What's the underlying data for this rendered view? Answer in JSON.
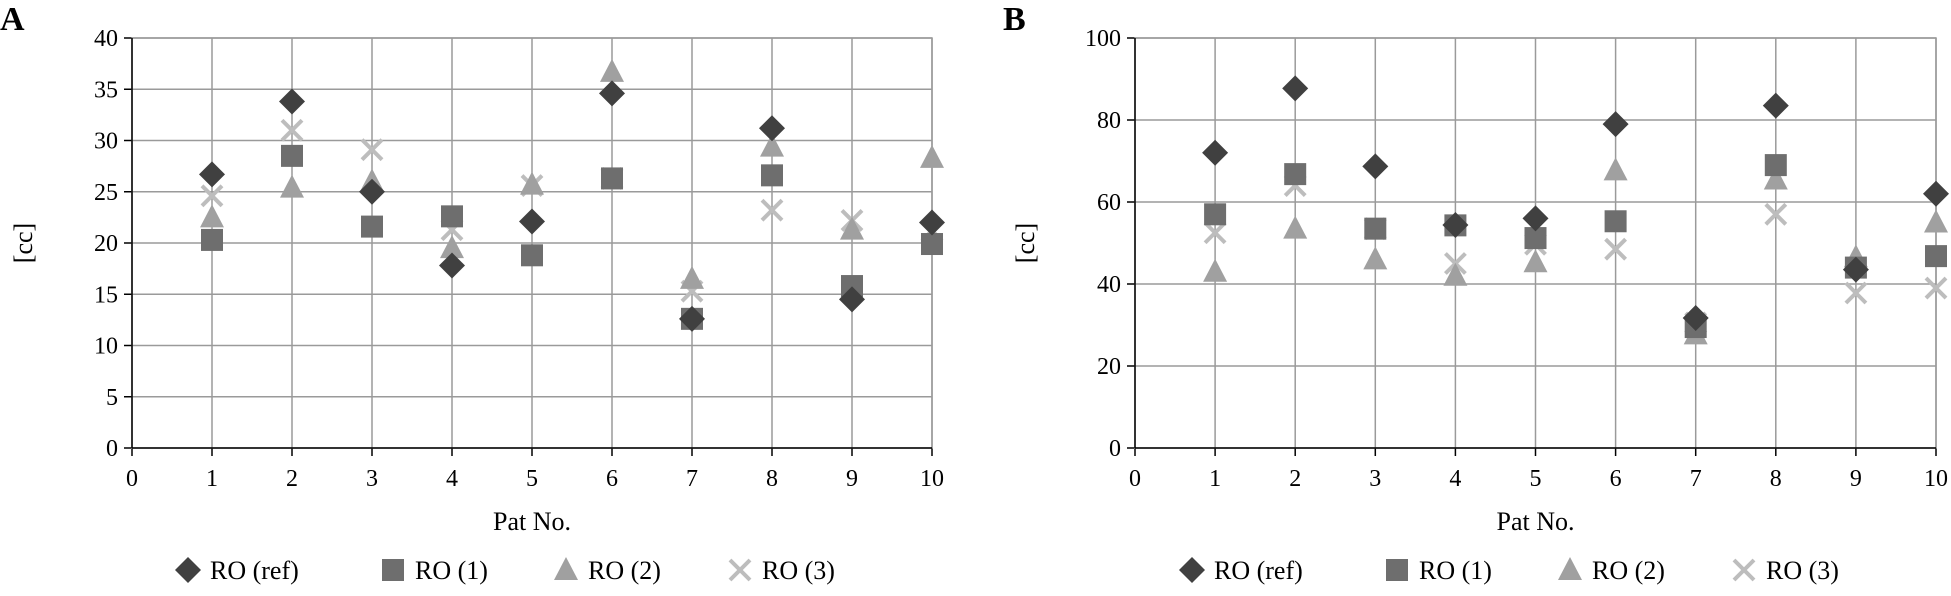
{
  "chart_data": [
    {
      "panel": "A",
      "type": "scatter",
      "xlabel": "Pat No.",
      "ylabel": "[cc]",
      "xlim": [
        0,
        10
      ],
      "ylim": [
        0,
        40
      ],
      "xticks": [
        "0",
        "1",
        "2",
        "3",
        "4",
        "5",
        "6",
        "7",
        "8",
        "9",
        "10"
      ],
      "yticks": [
        "0",
        "5",
        "10",
        "15",
        "20",
        "25",
        "30",
        "35",
        "40"
      ],
      "x": [
        1,
        2,
        3,
        4,
        5,
        6,
        7,
        8,
        9,
        10
      ],
      "grid": true,
      "legend_position": "bottom",
      "series": [
        {
          "name": "RO (ref)",
          "marker": "diamond",
          "color": "#404040",
          "values": [
            26.7,
            33.8,
            25.0,
            17.8,
            22.1,
            34.6,
            12.6,
            31.2,
            14.5,
            22.0
          ]
        },
        {
          "name": "RO (1)",
          "marker": "square",
          "color": "#6e6e6e",
          "values": [
            20.3,
            28.5,
            21.6,
            22.6,
            18.8,
            26.3,
            12.6,
            26.6,
            15.8,
            19.9
          ]
        },
        {
          "name": "RO (2)",
          "marker": "triangle",
          "color": "#a0a0a0",
          "values": [
            22.5,
            25.4,
            26.0,
            19.5,
            25.7,
            36.7,
            16.5,
            29.4,
            21.3,
            28.3
          ]
        },
        {
          "name": "RO (3)",
          "marker": "x",
          "color": "#bdbdbd",
          "values": [
            24.6,
            31.0,
            29.1,
            21.3,
            25.6,
            26.3,
            15.3,
            23.2,
            22.2,
            21.2
          ]
        }
      ]
    },
    {
      "panel": "B",
      "type": "scatter",
      "xlabel": "Pat No.",
      "ylabel": "[cc]",
      "xlim": [
        0,
        10
      ],
      "ylim": [
        0,
        100
      ],
      "xticks": [
        "0",
        "1",
        "2",
        "3",
        "4",
        "5",
        "6",
        "7",
        "8",
        "9",
        "10"
      ],
      "yticks": [
        "0",
        "20",
        "40",
        "60",
        "80",
        "100"
      ],
      "x": [
        1,
        2,
        3,
        4,
        5,
        6,
        7,
        8,
        9,
        10
      ],
      "grid": true,
      "legend_position": "bottom",
      "series": [
        {
          "name": "RO (ref)",
          "marker": "diamond",
          "color": "#404040",
          "values": [
            72.0,
            87.7,
            68.7,
            54.4,
            56.0,
            79.0,
            31.7,
            83.5,
            43.5,
            62.0
          ]
        },
        {
          "name": "RO (1)",
          "marker": "square",
          "color": "#6e6e6e",
          "values": [
            57.0,
            66.8,
            53.5,
            54.3,
            51.2,
            55.3,
            29.5,
            69.0,
            44.0,
            46.8
          ]
        },
        {
          "name": "RO (2)",
          "marker": "triangle",
          "color": "#a0a0a0",
          "values": [
            43.0,
            53.5,
            46.0,
            42.0,
            45.3,
            67.7,
            27.7,
            65.5,
            46.5,
            55.0
          ]
        },
        {
          "name": "RO (3)",
          "marker": "x",
          "color": "#bdbdbd",
          "values": [
            52.5,
            64.0,
            53.5,
            45.0,
            49.7,
            48.5,
            30.5,
            57.0,
            37.8,
            39.0
          ]
        }
      ]
    }
  ]
}
